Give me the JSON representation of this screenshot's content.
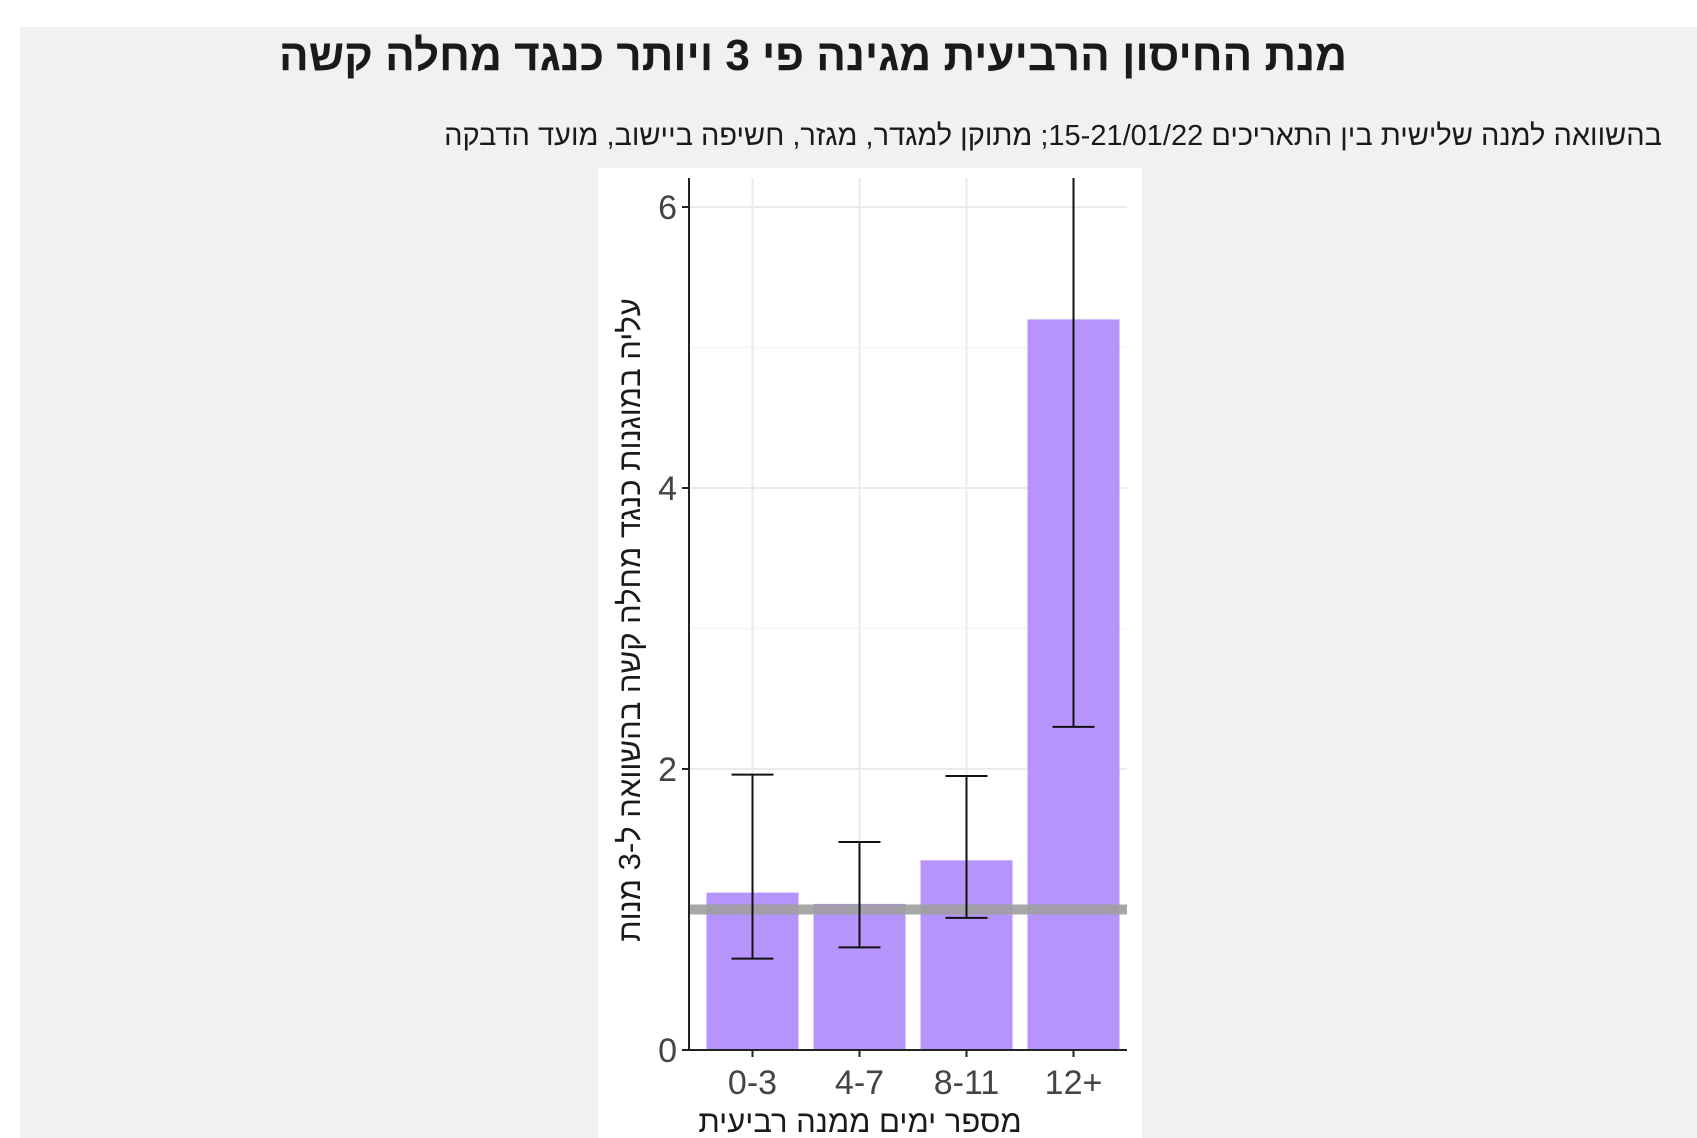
{
  "chart_data": {
    "type": "bar",
    "title": "מנת החיסון הרביעית מגינה פי 3 ויותר כנגד מחלה קשה",
    "subtitle": "בהשוואה למנה שלישית בין התאריכים 15-21/01/22; מתוקן למגדר, מגזר, חשיפה ביישוב, מועד הדבקה",
    "xlabel": "מספר ימים ממנה רביעית",
    "ylabel": "עליה במוגנות כנגד מחלה קשה בהשוואה ל-3 מנות",
    "categories": [
      "0-3",
      "4-7",
      "8-11",
      "12+"
    ],
    "values": [
      1.12,
      1.04,
      1.35,
      5.2
    ],
    "error_low": [
      0.65,
      0.73,
      0.94,
      2.3
    ],
    "error_high": [
      1.96,
      1.48,
      1.95,
      6.3
    ],
    "reference_line": 1,
    "ylim": [
      0,
      6.2
    ],
    "yticks": [
      "0",
      "2",
      "4",
      "6"
    ],
    "grid": true,
    "bar_color": "#b794fb",
    "reference_color": "#9e9e9e"
  }
}
